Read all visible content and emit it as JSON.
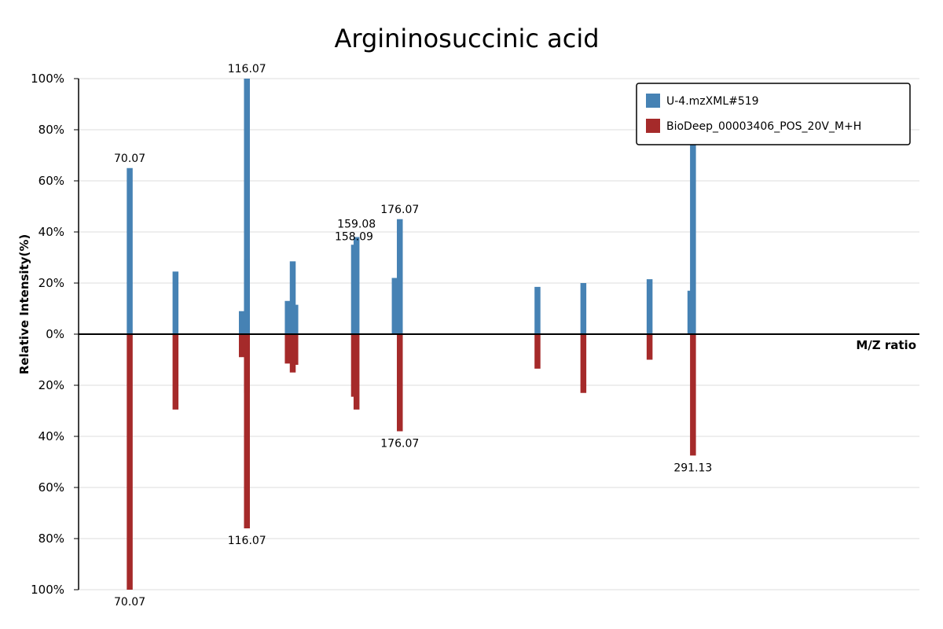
{
  "chart_data": {
    "type": "bar",
    "title": "Argininosuccinic acid",
    "ylabel": "Relative Intensity(%)",
    "xlabel": "M/Z ratio",
    "ylim": [
      -100,
      100
    ],
    "xlim": [
      50,
      380
    ],
    "y_ticks": [
      {
        "value": 100,
        "label": "100%"
      },
      {
        "value": 80,
        "label": "80%"
      },
      {
        "value": 60,
        "label": "60%"
      },
      {
        "value": 40,
        "label": "40%"
      },
      {
        "value": 20,
        "label": "20%"
      },
      {
        "value": 0,
        "label": "0%"
      },
      {
        "value": -20,
        "label": "20%"
      },
      {
        "value": -40,
        "label": "40%"
      },
      {
        "value": -60,
        "label": "60%"
      },
      {
        "value": -80,
        "label": "80%"
      },
      {
        "value": -100,
        "label": "100%"
      }
    ],
    "grid": true,
    "legend_position": "top-right",
    "series": [
      {
        "name": "U-4.mzXML#519",
        "color": "#4682b4",
        "direction": "up",
        "peaks": [
          {
            "mz": 70.07,
            "intensity": 65,
            "label": "70.07"
          },
          {
            "mz": 88.04,
            "intensity": 24.5
          },
          {
            "mz": 114.07,
            "intensity": 9
          },
          {
            "mz": 115.06,
            "intensity": 6
          },
          {
            "mz": 116.07,
            "intensity": 29.5
          },
          {
            "mz": 116.07,
            "intensity": 100,
            "label": "116.07"
          },
          {
            "mz": 132.1,
            "intensity": 13
          },
          {
            "mz": 134.05,
            "intensity": 28.5
          },
          {
            "mz": 135.06,
            "intensity": 11.5
          },
          {
            "mz": 158.09,
            "intensity": 35,
            "label": "158.09"
          },
          {
            "mz": 159.08,
            "intensity": 38,
            "label": "159.08"
          },
          {
            "mz": 174.08,
            "intensity": 22
          },
          {
            "mz": 176.07,
            "intensity": 45,
            "label": "176.07"
          },
          {
            "mz": 230.1,
            "intensity": 18.5
          },
          {
            "mz": 248.11,
            "intensity": 20
          },
          {
            "mz": 274.1,
            "intensity": 21.5
          },
          {
            "mz": 290.12,
            "intensity": 17
          },
          {
            "mz": 291.13,
            "intensity": 74
          }
        ]
      },
      {
        "name": "BioDeep_00003406_POS_20V_M+H",
        "color": "#a52a2a",
        "direction": "down",
        "peaks": [
          {
            "mz": 70.07,
            "intensity": 100,
            "label": "70.07"
          },
          {
            "mz": 88.04,
            "intensity": 29.5
          },
          {
            "mz": 114.07,
            "intensity": 9
          },
          {
            "mz": 115.06,
            "intensity": 8
          },
          {
            "mz": 116.07,
            "intensity": 23
          },
          {
            "mz": 116.07,
            "intensity": 76,
            "label": "116.07"
          },
          {
            "mz": 132.1,
            "intensity": 11.5
          },
          {
            "mz": 134.05,
            "intensity": 15
          },
          {
            "mz": 135.06,
            "intensity": 12
          },
          {
            "mz": 158.09,
            "intensity": 24.5
          },
          {
            "mz": 159.08,
            "intensity": 29.5
          },
          {
            "mz": 176.07,
            "intensity": 38,
            "label": "176.07"
          },
          {
            "mz": 230.1,
            "intensity": 13.5
          },
          {
            "mz": 248.11,
            "intensity": 23
          },
          {
            "mz": 274.1,
            "intensity": 10
          },
          {
            "mz": 291.13,
            "intensity": 47.5,
            "label": "291.13"
          }
        ]
      }
    ]
  }
}
